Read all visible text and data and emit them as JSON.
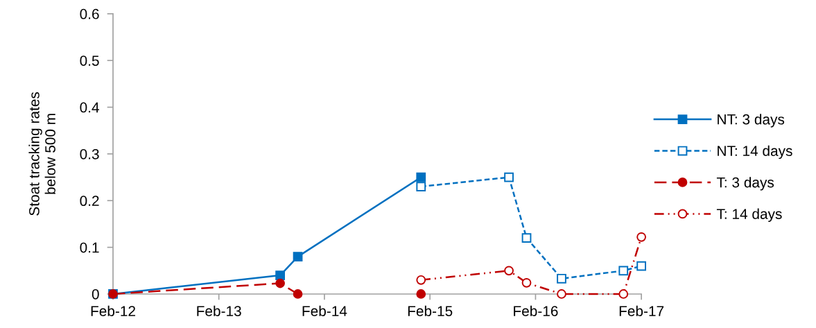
{
  "chart_data": {
    "type": "line",
    "ylabel": "Stoat tracking rates\nbelow 500 m",
    "series": [
      {
        "name": "NT: 3 days",
        "color": "#0070c0",
        "marker": "square",
        "line_style": "solid",
        "x": [
          "2012-02",
          "2013-09",
          "2013-11",
          "2015-01"
        ],
        "values": [
          0,
          0.04,
          0.08,
          0.25
        ]
      },
      {
        "name": "NT: 14 days",
        "color": "#0070c0",
        "marker": "square",
        "line_style": "dashed",
        "x": [
          "2015-01",
          "2015-11",
          "2016-01",
          "2016-05",
          "2016-12",
          "2017-02"
        ],
        "values": [
          0.23,
          0.25,
          0.12,
          0.033,
          0.05,
          0.06
        ]
      },
      {
        "name": "T: 3 days",
        "color": "#c00000",
        "marker": "circle",
        "line_style": "long_dashed",
        "x": [
          "2012-02",
          "2013-09",
          "2013-11"
        ],
        "values": [
          0,
          0.023,
          0
        ]
      },
      {
        "name": "T: 14 days",
        "color": "#c00000",
        "marker": "circle",
        "line_style": "dash_dot_dot",
        "x": [
          "2015-01",
          "2015-11",
          "2016-01",
          "2016-05",
          "2016-12",
          "2017-02"
        ],
        "values": [
          0.03,
          0.05,
          0.024,
          0,
          0,
          0.122
        ]
      },
      {
        "type": "scatter",
        "color": "#c00000",
        "marker": "circle",
        "x": [
          "2015-01"
        ],
        "values": [
          0
        ]
      }
    ],
    "xlim": [
      "2012-02",
      "2017-02"
    ],
    "xticks": [
      {
        "value": "2012-02",
        "label": "Feb-12"
      },
      {
        "value": "2013-02",
        "label": "Feb-13"
      },
      {
        "value": "2014-02",
        "label": "Feb-14"
      },
      {
        "value": "2015-02",
        "label": "Feb-15"
      },
      {
        "value": "2016-02",
        "label": "Feb-16"
      },
      {
        "value": "2017-02",
        "label": "Feb-17"
      }
    ],
    "ylim": [
      0,
      0.6
    ],
    "yticks": [
      0,
      0.1,
      0.2,
      0.3,
      0.4,
      0.5,
      0.6
    ],
    "grid": false,
    "legend": "right"
  }
}
